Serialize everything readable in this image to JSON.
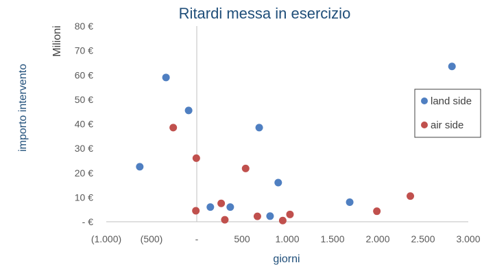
{
  "chart_data": {
    "type": "scatter",
    "title": "Ritardi messa in esercizio",
    "xlabel": "giorni",
    "ylabel": "importo intervento",
    "y_unit_label": "Milioni",
    "xlim": [
      -1000,
      3000
    ],
    "ylim": [
      0,
      80
    ],
    "x_ticks": [
      -1000,
      -500,
      0,
      500,
      1000,
      1500,
      2000,
      2500,
      3000
    ],
    "x_tick_labels": [
      "(1.000)",
      "(500)",
      "-",
      "500",
      "1.000",
      "1.500",
      "2.000",
      "2.500",
      "3.000"
    ],
    "y_ticks": [
      0,
      10,
      20,
      30,
      40,
      50,
      60,
      70,
      80
    ],
    "y_tick_labels": [
      "-  €",
      "10 €",
      "20 €",
      "30 €",
      "40 €",
      "50 €",
      "60 €",
      "70 €",
      "80 €"
    ],
    "grid": false,
    "legend_position": "right",
    "series": [
      {
        "name": "land side",
        "color": "#4f7fc1",
        "points": [
          {
            "x": -630,
            "y": 22.5
          },
          {
            "x": -340,
            "y": 59
          },
          {
            "x": -90,
            "y": 45.5
          },
          {
            "x": 150,
            "y": 6
          },
          {
            "x": 370,
            "y": 6
          },
          {
            "x": 690,
            "y": 38.5
          },
          {
            "x": 810,
            "y": 2.3
          },
          {
            "x": 900,
            "y": 16
          },
          {
            "x": 1690,
            "y": 8
          },
          {
            "x": 2820,
            "y": 63.5
          }
        ]
      },
      {
        "name": "air side",
        "color": "#c0504d",
        "points": [
          {
            "x": -260,
            "y": 38.5
          },
          {
            "x": -5,
            "y": 26
          },
          {
            "x": -10,
            "y": 4.5
          },
          {
            "x": 270,
            "y": 7.5
          },
          {
            "x": 310,
            "y": 0.8
          },
          {
            "x": 540,
            "y": 21.8
          },
          {
            "x": 670,
            "y": 2.2
          },
          {
            "x": 950,
            "y": 0.5
          },
          {
            "x": 1030,
            "y": 3
          },
          {
            "x": 1990,
            "y": 4.3
          },
          {
            "x": 2360,
            "y": 10.5
          }
        ]
      }
    ]
  }
}
